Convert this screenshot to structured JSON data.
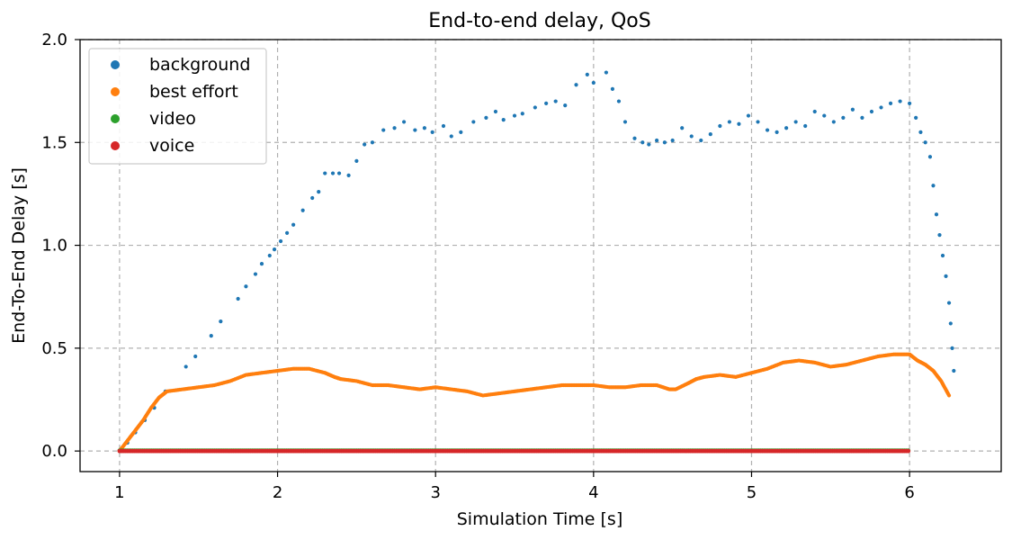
{
  "chart_data": {
    "type": "scatter",
    "title": "End-to-end delay, QoS",
    "xlabel": "Simulation Time [s]",
    "ylabel": "End-To-End Delay [s]",
    "xlim": [
      0.75,
      6.58
    ],
    "ylim": [
      -0.1,
      2.0
    ],
    "xticks": [
      1,
      2,
      3,
      4,
      5,
      6
    ],
    "xtick_labels": [
      "1",
      "2",
      "3",
      "4",
      "5",
      "6"
    ],
    "yticks": [
      0.0,
      0.5,
      1.0,
      1.5,
      2.0
    ],
    "ytick_labels": [
      "0.0",
      "0.5",
      "1.0",
      "1.5",
      "2.0"
    ],
    "grid": true,
    "legend_position": "top-left",
    "series": [
      {
        "name": "background",
        "color": "#1f77b4",
        "x": [
          1.01,
          1.05,
          1.1,
          1.16,
          1.22,
          1.29,
          1.42,
          1.48,
          1.58,
          1.64,
          1.75,
          1.8,
          1.86,
          1.9,
          1.95,
          1.98,
          2.02,
          2.06,
          2.1,
          2.16,
          2.22,
          2.26,
          2.3,
          2.35,
          2.39,
          2.45,
          2.5,
          2.55,
          2.6,
          2.67,
          2.74,
          2.8,
          2.87,
          2.93,
          2.98,
          3.05,
          3.1,
          3.16,
          3.24,
          3.32,
          3.38,
          3.43,
          3.5,
          3.55,
          3.63,
          3.7,
          3.76,
          3.82,
          3.89,
          3.96,
          4.0,
          4.08,
          4.12,
          4.16,
          4.2,
          4.26,
          4.31,
          4.35,
          4.4,
          4.45,
          4.5,
          4.56,
          4.62,
          4.68,
          4.74,
          4.8,
          4.86,
          4.92,
          4.98,
          5.04,
          5.1,
          5.16,
          5.22,
          5.28,
          5.34,
          5.4,
          5.46,
          5.52,
          5.58,
          5.64,
          5.7,
          5.76,
          5.82,
          5.88,
          5.94,
          6.0,
          6.04,
          6.07,
          6.1,
          6.13,
          6.15,
          6.17,
          6.19,
          6.21,
          6.23,
          6.25,
          6.26,
          6.27,
          6.28
        ],
        "y": [
          0.0,
          0.04,
          0.09,
          0.15,
          0.21,
          0.29,
          0.41,
          0.46,
          0.56,
          0.63,
          0.74,
          0.8,
          0.86,
          0.91,
          0.95,
          0.98,
          1.02,
          1.06,
          1.1,
          1.17,
          1.23,
          1.26,
          1.35,
          1.35,
          1.35,
          1.34,
          1.41,
          1.49,
          1.5,
          1.56,
          1.57,
          1.6,
          1.56,
          1.57,
          1.55,
          1.58,
          1.53,
          1.55,
          1.6,
          1.62,
          1.65,
          1.61,
          1.63,
          1.64,
          1.67,
          1.69,
          1.7,
          1.68,
          1.78,
          1.83,
          1.79,
          1.84,
          1.76,
          1.7,
          1.6,
          1.52,
          1.5,
          1.49,
          1.51,
          1.5,
          1.51,
          1.57,
          1.53,
          1.51,
          1.54,
          1.58,
          1.6,
          1.59,
          1.63,
          1.6,
          1.56,
          1.55,
          1.57,
          1.6,
          1.58,
          1.65,
          1.63,
          1.6,
          1.62,
          1.66,
          1.62,
          1.65,
          1.67,
          1.69,
          1.7,
          1.69,
          1.62,
          1.55,
          1.5,
          1.43,
          1.29,
          1.15,
          1.05,
          0.95,
          0.85,
          0.72,
          0.62,
          0.5,
          0.39
        ]
      },
      {
        "name": "best effort",
        "color": "#ff7f0e",
        "x": [
          1.0,
          1.05,
          1.1,
          1.15,
          1.2,
          1.25,
          1.3,
          1.4,
          1.5,
          1.6,
          1.7,
          1.8,
          1.9,
          2.0,
          2.1,
          2.2,
          2.3,
          2.36,
          2.4,
          2.5,
          2.6,
          2.7,
          2.8,
          2.9,
          3.0,
          3.1,
          3.2,
          3.3,
          3.4,
          3.5,
          3.6,
          3.7,
          3.8,
          3.9,
          4.0,
          4.1,
          4.2,
          4.3,
          4.4,
          4.48,
          4.52,
          4.6,
          4.65,
          4.7,
          4.8,
          4.9,
          5.0,
          5.1,
          5.2,
          5.3,
          5.4,
          5.5,
          5.6,
          5.7,
          5.8,
          5.9,
          6.0,
          6.05,
          6.1,
          6.15,
          6.2,
          6.25
        ],
        "y": [
          0.0,
          0.05,
          0.1,
          0.15,
          0.21,
          0.26,
          0.29,
          0.3,
          0.31,
          0.32,
          0.34,
          0.37,
          0.38,
          0.39,
          0.4,
          0.4,
          0.38,
          0.36,
          0.35,
          0.34,
          0.32,
          0.32,
          0.31,
          0.3,
          0.31,
          0.3,
          0.29,
          0.27,
          0.28,
          0.29,
          0.3,
          0.31,
          0.32,
          0.32,
          0.32,
          0.31,
          0.31,
          0.32,
          0.32,
          0.3,
          0.3,
          0.33,
          0.35,
          0.36,
          0.37,
          0.36,
          0.38,
          0.4,
          0.43,
          0.44,
          0.43,
          0.41,
          0.42,
          0.44,
          0.46,
          0.47,
          0.47,
          0.44,
          0.42,
          0.39,
          0.34,
          0.27
        ]
      },
      {
        "name": "video",
        "color": "#2ca02c",
        "x": [
          1.0,
          6.0
        ],
        "y": [
          0.002,
          0.002
        ]
      },
      {
        "name": "voice",
        "color": "#d62728",
        "x": [
          1.0,
          6.0
        ],
        "y": [
          0.0,
          0.0
        ]
      }
    ]
  }
}
